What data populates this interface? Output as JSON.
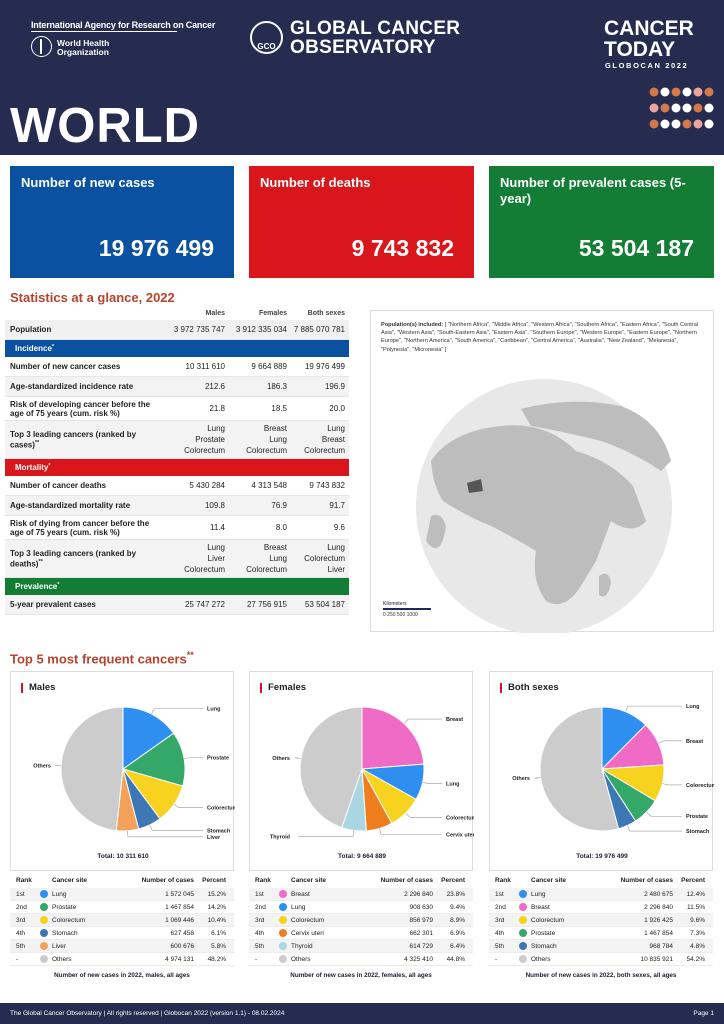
{
  "header": {
    "iarc": "International Agency for Research on Cancer",
    "who_line1": "World Health",
    "who_line2": "Organization",
    "gco_badge": "GCO",
    "gco_line1": "GLOBAL CANCER",
    "gco_line2": "OBSERVATORY",
    "ct_line1": "CANCER",
    "ct_line2": "TODAY",
    "ct_line3": "GLOBOCAN 2022",
    "title": "WORLD",
    "dot_colors": [
      "#d3794a",
      "#ffffff",
      "#e9a6a0"
    ]
  },
  "kpis": [
    {
      "label": "Number of new cases",
      "value": "19 976 499",
      "color": "#0a52a1"
    },
    {
      "label": "Number of deaths",
      "value": "9 743 832",
      "color": "#d8161b"
    },
    {
      "label": "Number of prevalent cases (5-year)",
      "value": "53 504 187",
      "color": "#137c35"
    }
  ],
  "stats": {
    "title": "Statistics at a glance, 2022",
    "cols": [
      "Males",
      "Females",
      "Both sexes"
    ],
    "population": {
      "label": "Population",
      "m": "3 972 735 747",
      "f": "3 912 335 034",
      "b": "7 885 070 781"
    },
    "incidence_label": "Incidence",
    "incidence": [
      {
        "label": "Number of new cancer cases",
        "m": "10 311 610",
        "f": "9 664 889",
        "b": "19 976 499"
      },
      {
        "label": "Age-standardized incidence rate",
        "m": "212.6",
        "f": "186.3",
        "b": "196.9"
      },
      {
        "label": "Risk of developing cancer before the age of 75 years (cum. risk %)",
        "m": "21.8",
        "f": "18.5",
        "b": "20.0"
      },
      {
        "label": "Top 3 leading cancers (ranked by cases)",
        "m": [
          "Lung",
          "Prostate",
          "Colorectum"
        ],
        "f": [
          "Breast",
          "Lung",
          "Colorectum"
        ],
        "b": [
          "Lung",
          "Breast",
          "Colorectum"
        ]
      }
    ],
    "mortality_label": "Mortality",
    "mortality": [
      {
        "label": "Number of cancer deaths",
        "m": "5 430 284",
        "f": "4 313 548",
        "b": "9 743 832"
      },
      {
        "label": "Age-standardized mortality rate",
        "m": "109.8",
        "f": "76.9",
        "b": "91.7"
      },
      {
        "label": "Risk of dying from cancer before the age of 75 years (cum. risk %)",
        "m": "11.4",
        "f": "8.0",
        "b": "9.6"
      },
      {
        "label": "Top 3 leading cancers (ranked by deaths)",
        "m": [
          "Lung",
          "Liver",
          "Colorectum"
        ],
        "f": [
          "Breast",
          "Lung",
          "Colorectum"
        ],
        "b": [
          "Lung",
          "Colorectum",
          "Liver"
        ]
      }
    ],
    "prevalence_label": "Prevalence",
    "prevalence": {
      "label": "5-year prevalent cases",
      "m": "25 747 272",
      "f": "27 756 915",
      "b": "53 504 187"
    }
  },
  "map": {
    "population_prefix": "Population(s) included:",
    "population_list": "[ \"Northern Africa\", \"Middle Africa\", \"Western Africa\", \"Southern Africa\", \"Eastern Africa\", \"South Central Asia\", \"Western Asia\", \"South-Eastern Asia\", \"Eastern Asia\", \"Southern Europe\", \"Western Europe\", \"Eastern Europe\", \"Northern Europe\", \"Northern America\", \"South America\", \"Caribbean\", \"Central America\", \"Australia\", \"New Zealand\", \"Melanesia\", \"Polynesia\", \"Micronesia\" ]",
    "scale_title": "Kilometers",
    "scale_ticks": "0   250 500        1000"
  },
  "top5": {
    "title": "Top 5 most frequent cancers",
    "title_mark": "**"
  },
  "table_headers": {
    "rank": "Rank",
    "site": "Cancer site",
    "cases": "Number of cases",
    "pct": "Percent"
  },
  "chart_data": [
    {
      "type": "pie",
      "title": "Males",
      "total_label": "Total: 10 311 610",
      "caption": "Number of new cases in 2022, males, all ages",
      "slices": [
        {
          "label": "Lung",
          "rank": "1st",
          "cases": "1 572 045",
          "percent": "15.2%",
          "value": 15.2,
          "color": "#2e8ff0"
        },
        {
          "label": "Prostate",
          "rank": "2nd",
          "cases": "1 467 854",
          "percent": "14.2%",
          "value": 14.2,
          "color": "#33a868"
        },
        {
          "label": "Colorectum",
          "rank": "3rd",
          "cases": "1 069 446",
          "percent": "10.4%",
          "value": 10.4,
          "color": "#f7d21e"
        },
        {
          "label": "Stomach",
          "rank": "4th",
          "cases": "627 458",
          "percent": "6.1%",
          "value": 6.1,
          "color": "#3d78b5"
        },
        {
          "label": "Liver",
          "rank": "5th",
          "cases": "600 676",
          "percent": "5.8%",
          "value": 5.8,
          "color": "#f4a259"
        },
        {
          "label": "Others",
          "rank": "-",
          "cases": "4 974 131",
          "percent": "48.2%",
          "value": 48.2,
          "color": "#cccccc"
        }
      ]
    },
    {
      "type": "pie",
      "title": "Females",
      "total_label": "Total: 9 664 889",
      "caption": "Number of new cases in 2022, females, all ages",
      "slices": [
        {
          "label": "Breast",
          "rank": "1st",
          "cases": "2 296 840",
          "percent": "23.8%",
          "value": 23.8,
          "color": "#f06bc6"
        },
        {
          "label": "Lung",
          "rank": "2nd",
          "cases": "908 630",
          "percent": "9.4%",
          "value": 9.4,
          "color": "#2e8ff0"
        },
        {
          "label": "Colorectum",
          "rank": "3rd",
          "cases": "856 979",
          "percent": "8.9%",
          "value": 8.9,
          "color": "#f7d21e"
        },
        {
          "label": "Cervix uteri",
          "rank": "4th",
          "cases": "662 301",
          "percent": "6.9%",
          "value": 6.9,
          "color": "#f07d1e"
        },
        {
          "label": "Thyroid",
          "rank": "5th",
          "cases": "614 729",
          "percent": "6.4%",
          "value": 6.4,
          "color": "#a9d6e2"
        },
        {
          "label": "Others",
          "rank": "-",
          "cases": "4 325 410",
          "percent": "44.8%",
          "value": 44.8,
          "color": "#cccccc"
        }
      ]
    },
    {
      "type": "pie",
      "title": "Both sexes",
      "total_label": "Total: 19 976 499",
      "caption": "Number of new cases in 2022, both sexes, all ages",
      "slices": [
        {
          "label": "Lung",
          "rank": "1st",
          "cases": "2 480 675",
          "percent": "12.4%",
          "value": 12.4,
          "color": "#2e8ff0"
        },
        {
          "label": "Breast",
          "rank": "2nd",
          "cases": "2 296 840",
          "percent": "11.5%",
          "value": 11.5,
          "color": "#f06bc6"
        },
        {
          "label": "Colorectum",
          "rank": "3rd",
          "cases": "1 926 425",
          "percent": "9.6%",
          "value": 9.6,
          "color": "#f7d21e"
        },
        {
          "label": "Prostate",
          "rank": "4th",
          "cases": "1 467 854",
          "percent": "7.3%",
          "value": 7.3,
          "color": "#33a868"
        },
        {
          "label": "Stomach",
          "rank": "5th",
          "cases": "968 784",
          "percent": "4.8%",
          "value": 4.8,
          "color": "#3d78b5"
        },
        {
          "label": "Others",
          "rank": "-",
          "cases": "10 835 921",
          "percent": "54.2%",
          "value": 54.2,
          "color": "#cccccc"
        }
      ]
    }
  ],
  "footer": {
    "left": "The Global Cancer Observatory | All rights reserved | Globocan 2022 (version 1.1) - 08.02.2024",
    "right": "Page 1"
  }
}
